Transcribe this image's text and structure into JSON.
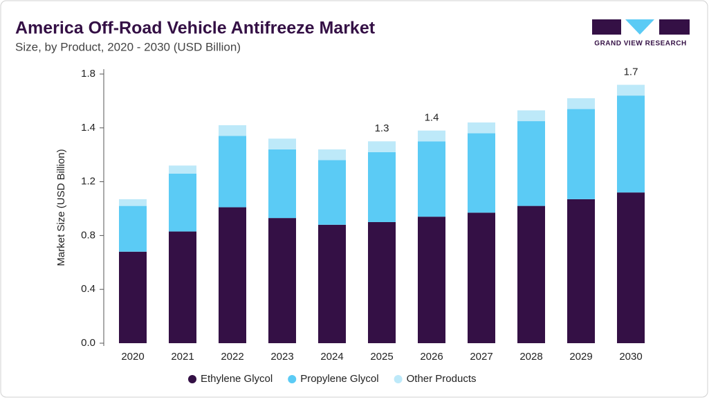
{
  "chart_data": {
    "type": "stacked-bar",
    "title": "America Off-Road Vehicle Antifreeze Market",
    "subtitle": "Size, by Product, 2020 - 2030 (USD Billion)",
    "y_label": "Market Size (USD Billion)",
    "brand": "GRAND VIEW RESEARCH",
    "categories": [
      "2020",
      "2021",
      "2022",
      "2023",
      "2024",
      "2025",
      "2026",
      "2027",
      "2028",
      "2029",
      "2030"
    ],
    "series": [
      {
        "name": "Ethylene Glycol",
        "color": "#341045",
        "values": [
          0.68,
          0.83,
          1.01,
          0.93,
          0.88,
          0.9,
          0.94,
          0.97,
          1.02,
          1.07,
          1.12
        ]
      },
      {
        "name": "Propylene Glycol",
        "color": "#5bcbf5",
        "values": [
          0.34,
          0.4,
          0.36,
          0.39,
          0.4,
          0.41,
          0.41,
          0.41,
          0.43,
          0.47,
          0.52
        ]
      },
      {
        "name": "Other Products",
        "color": "#bde9f9",
        "values": [
          0.05,
          0.03,
          0.05,
          0.04,
          0.04,
          0.04,
          0.04,
          0.06,
          0.08,
          0.08,
          0.08
        ]
      }
    ],
    "totals": [
      null,
      null,
      null,
      null,
      null,
      1.3,
      1.4,
      null,
      null,
      null,
      1.7
    ],
    "ylim": [
      0,
      1.8
    ],
    "yticks": [
      {
        "value": 0,
        "label": "0.0"
      },
      0.4,
      0.8,
      1.2,
      1.4,
      1.8
    ],
    "grid": false
  }
}
